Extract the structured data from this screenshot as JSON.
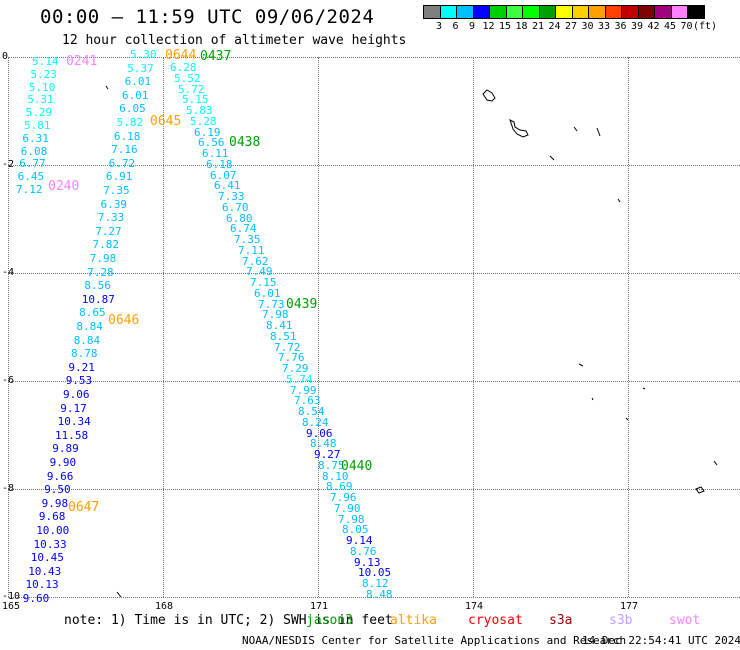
{
  "header": {
    "title": "00:00 — 11:59 UTC 09/06/2024",
    "subtitle": "12 hour collection of altimeter wave heights"
  },
  "colorbar": {
    "colors": [
      "#7f7f7f",
      "#00ffff",
      "#00bfff",
      "#0000ff",
      "#00d000",
      "#40ff40",
      "#00ff00",
      "#00a000",
      "#ffff00",
      "#ffd000",
      "#ffa000",
      "#ff4000",
      "#c00000",
      "#800000",
      "#a00080",
      "#ff80ff",
      "#000000"
    ],
    "labels": [
      "3",
      "6",
      "9",
      "12",
      "15",
      "18",
      "21",
      "24",
      "27",
      "30",
      "33",
      "36",
      "39",
      "42",
      "45",
      "70",
      "(ft)"
    ]
  },
  "axes": {
    "lat_labels": [
      "0",
      "-2",
      "-4",
      "-6",
      "-8",
      "-10"
    ],
    "lon_labels": [
      "165",
      "168",
      "171",
      "174",
      "177"
    ]
  },
  "pass_labels": [
    {
      "text": "0241",
      "color": "#ff80ff"
    },
    {
      "text": "0240",
      "color": "#ff80ff"
    },
    {
      "text": "0644",
      "color": "#ffa000"
    },
    {
      "text": "0437",
      "color": "#00a000"
    },
    {
      "text": "0645",
      "color": "#ffa000"
    },
    {
      "text": "0438",
      "color": "#00a000"
    },
    {
      "text": "0439",
      "color": "#00a000"
    },
    {
      "text": "0646",
      "color": "#ffa000"
    },
    {
      "text": "0440",
      "color": "#00a000"
    },
    {
      "text": "0647",
      "color": "#ffa000"
    }
  ],
  "tracks": [
    {
      "name": "track-a",
      "values": [
        "5.14",
        "5.23",
        "5.10",
        "5.31",
        "5.29",
        "5.81",
        "6.31",
        "6.08",
        "6.77",
        "6.45",
        "7.12"
      ],
      "colors": [
        "#00ffff",
        "#00ffff",
        "#00ffff",
        "#00ffff",
        "#00ffff",
        "#00ffff",
        "#00bfff",
        "#00bfff",
        "#00bfff",
        "#00bfff",
        "#00bfff"
      ]
    },
    {
      "name": "track-b",
      "values": [
        "5.30",
        "5.37",
        "6.01",
        "6.01",
        "6.05",
        "5.82",
        "6.18",
        "7.16",
        "6.72",
        "6.91",
        "7.35",
        "6.39",
        "7.33",
        "7.27",
        "7.82",
        "7.98",
        "7.28",
        "8.56",
        "10.87",
        "8.65",
        "8.84",
        "8.84",
        "8.78",
        "9.21",
        "9.53",
        "9.06",
        "9.17",
        "10.34",
        "11.58",
        "9.89",
        "9.90",
        "9.66",
        "9.50",
        "9.98",
        "9.68",
        "10.00",
        "10.33",
        "10.45",
        "10.43",
        "10.13",
        "9.60"
      ],
      "colors": [
        "#00ffff",
        "#00ffff",
        "#00bfff",
        "#00bfff",
        "#00bfff",
        "#00ffff",
        "#00bfff",
        "#00bfff",
        "#00bfff",
        "#00bfff",
        "#00bfff",
        "#00bfff",
        "#00bfff",
        "#00bfff",
        "#00bfff",
        "#00bfff",
        "#00bfff",
        "#00bfff",
        "#0000ff",
        "#00bfff",
        "#00bfff",
        "#00bfff",
        "#00bfff",
        "#0000ff",
        "#0000ff",
        "#0000ff",
        "#0000ff",
        "#0000ff",
        "#0000ff",
        "#0000ff",
        "#0000ff",
        "#0000ff",
        "#0000ff",
        "#0000ff",
        "#0000ff",
        "#0000ff",
        "#0000ff",
        "#0000ff",
        "#0000ff",
        "#0000ff",
        "#0000ff"
      ]
    },
    {
      "name": "track-c",
      "values": [
        "6.28",
        "5.52",
        "5.72",
        "5.15",
        "5.83",
        "5.28",
        "6.19",
        "6.56",
        "6.11",
        "6.18",
        "6.07",
        "6.41",
        "7.33",
        "6.70",
        "6.80",
        "6.74",
        "7.35",
        "7.11",
        "7.62",
        "7.49",
        "7.15",
        "6.01",
        "7.73",
        "7.98",
        "8.41",
        "8.51",
        "7.72",
        "7.76",
        "7.29",
        "5.74",
        "7.99",
        "7.63",
        "8.54",
        "8.24",
        "9.06",
        "8.48",
        "9.27",
        "8.75",
        "8.10",
        "8.69",
        "7.96",
        "7.90",
        "7.98",
        "8.05",
        "9.14",
        "8.76",
        "9.13",
        "10.05",
        "8.12",
        "8.48"
      ],
      "colors": [
        "#00ffff",
        "#00ffff",
        "#00ffff",
        "#00ffff",
        "#00ffff",
        "#00ffff",
        "#00bfff",
        "#00bfff",
        "#00bfff",
        "#00bfff",
        "#00bfff",
        "#00bfff",
        "#00bfff",
        "#00bfff",
        "#00bfff",
        "#00bfff",
        "#00bfff",
        "#00bfff",
        "#00bfff",
        "#00bfff",
        "#00bfff",
        "#00bfff",
        "#00bfff",
        "#00bfff",
        "#00bfff",
        "#00bfff",
        "#00bfff",
        "#00bfff",
        "#00bfff",
        "#00ffff",
        "#00bfff",
        "#00bfff",
        "#00bfff",
        "#00bfff",
        "#0000ff",
        "#00bfff",
        "#0000ff",
        "#00bfff",
        "#00bfff",
        "#00bfff",
        "#00bfff",
        "#00bfff",
        "#00bfff",
        "#00bfff",
        "#0000ff",
        "#00bfff",
        "#0000ff",
        "#0000ff",
        "#00bfff",
        "#00bfff"
      ]
    }
  ],
  "footer": {
    "note": "note:  1) Time is in UTC; 2) SWH is in feet",
    "legend": [
      {
        "name": "jason3",
        "label": "jason3",
        "color": "#00a000"
      },
      {
        "name": "altika",
        "label": "altika",
        "color": "#ffa000"
      },
      {
        "name": "cryosat",
        "label": "cryosat",
        "color": "#ff0000"
      },
      {
        "name": "s3a",
        "label": "s3a",
        "color": "#a00000"
      },
      {
        "name": "s3b",
        "label": "s3b",
        "color": "#c0a0ff"
      },
      {
        "name": "swot",
        "label": "swot",
        "color": "#ff80ff"
      }
    ],
    "credits": "NOAA/NESDIS Center for Satellite Applications and Research",
    "generated": "14 Dec 22:54:41 UTC 2024"
  }
}
